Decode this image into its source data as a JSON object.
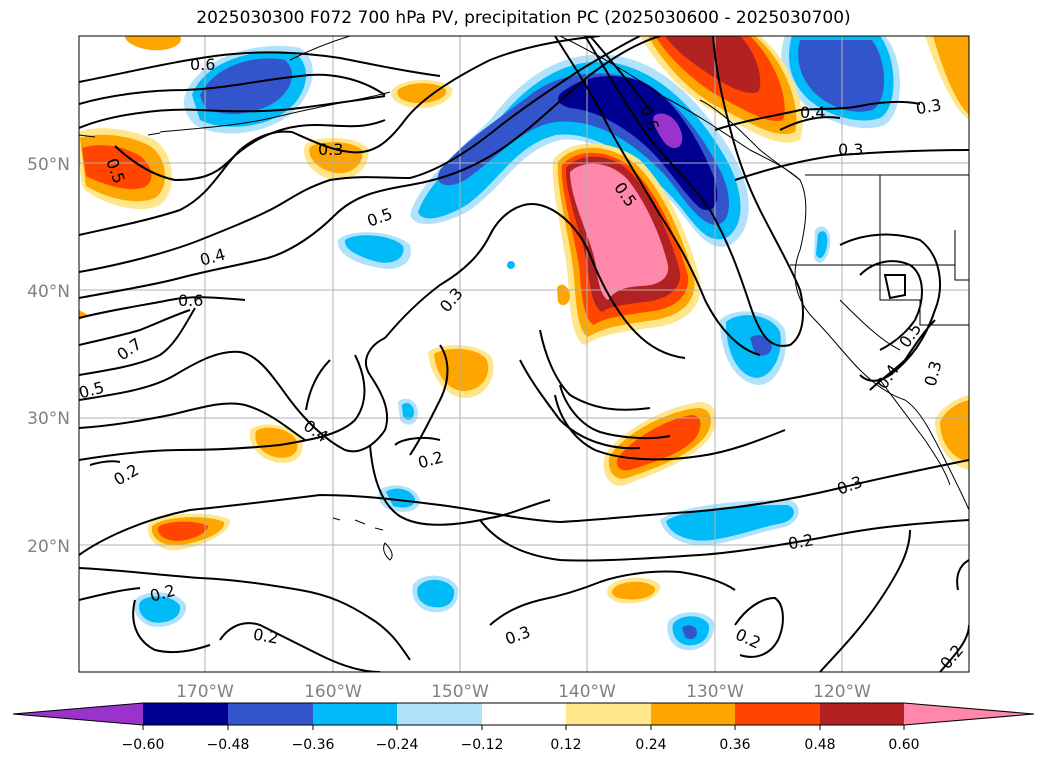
{
  "title": "2025030300 F072 700 hPa PV, precipitation PC (2025030600 - 2025030700)",
  "colors": {
    "c_lt_m060": "#9933cc",
    "c_m060_m048": "#000090",
    "c_m048_m036": "#3355cc",
    "c_m036_m024": "#00bbf8",
    "c_m024_m012": "#b0e2fb",
    "c_m012_012": "#ffffff",
    "c_012_024": "#ffe68a",
    "c_024_036": "#ffa500",
    "c_036_048": "#ff4500",
    "c_048_060": "#b22222",
    "c_gt_060": "#ff88aa"
  },
  "lat_labels": [
    "50°N",
    "40°N",
    "30°N",
    "20°N"
  ],
  "lon_labels": [
    "170°W",
    "160°W",
    "150°W",
    "140°W",
    "130°W",
    "120°W"
  ],
  "colorbar": {
    "ticks": [
      "−0.60",
      "−0.48",
      "−0.36",
      "−0.24",
      "−0.12",
      "0.12",
      "0.24",
      "0.36",
      "0.48",
      "0.60"
    ]
  },
  "contour_labels": [
    "0.6",
    "0.5",
    "0.3",
    "0.4",
    "0.6",
    "0.7",
    "0.5",
    "0.2",
    "0.5",
    "0.3",
    "0.4",
    "0.2",
    "0.6",
    "0.5",
    "0.4",
    "0.3",
    "0.3",
    "0.2",
    "0.2",
    "0.3",
    "0.2",
    "0.2",
    "0.2",
    "0.5",
    "0.4",
    "0.3"
  ]
}
